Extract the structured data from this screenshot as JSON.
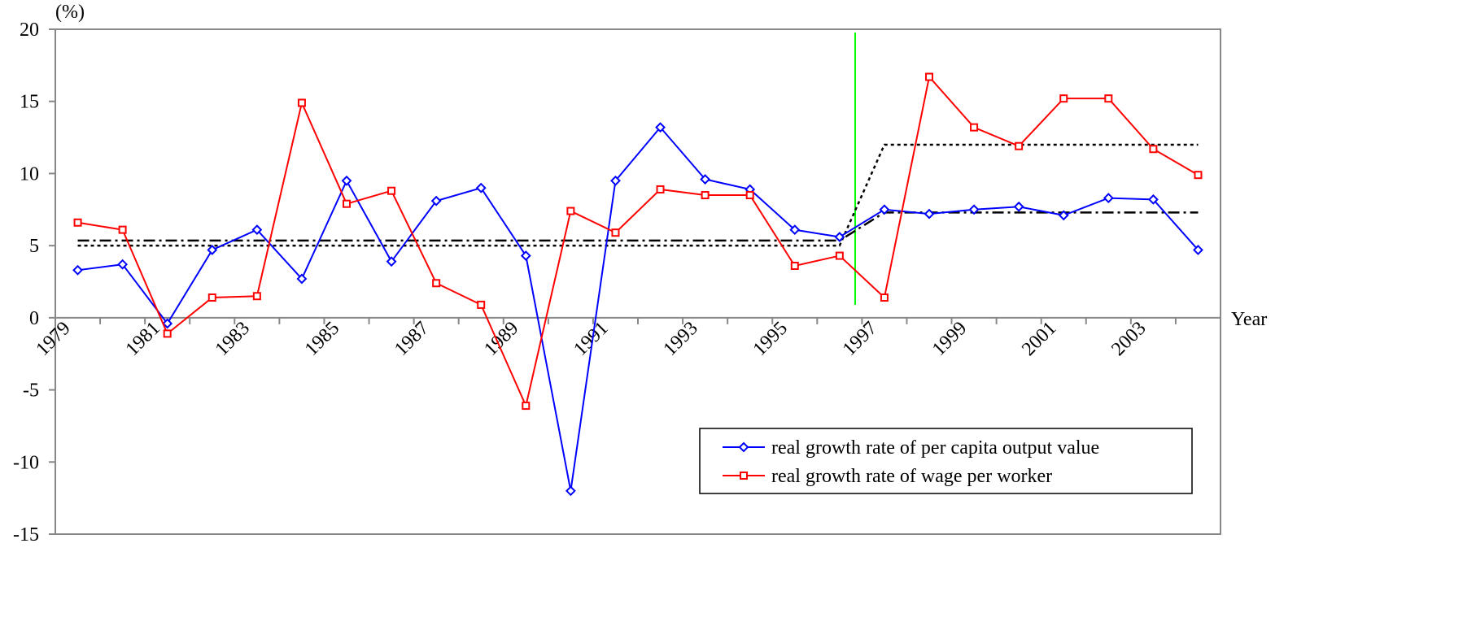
{
  "chart_data": {
    "type": "line",
    "y_label": "(%)",
    "x_label": "Year",
    "categories": [
      "1979",
      null,
      "1981",
      null,
      "1983",
      null,
      "1985",
      null,
      "1987",
      null,
      "1989",
      null,
      "1991",
      null,
      "1993",
      null,
      "1995",
      null,
      "1997",
      null,
      "1999",
      null,
      "2001",
      null,
      "2003",
      null
    ],
    "series": [
      {
        "name": "real growth rate of per capita output value",
        "color": "#0000ff",
        "marker": "diamond",
        "values": [
          3.3,
          3.7,
          -0.4,
          4.7,
          6.1,
          2.7,
          9.5,
          3.9,
          8.1,
          9.0,
          4.3,
          -12.0,
          9.5,
          13.2,
          9.6,
          8.9,
          6.1,
          5.6,
          7.5,
          7.2,
          7.5,
          7.7,
          7.1,
          8.3,
          8.2,
          4.7
        ]
      },
      {
        "name": "real growth rate of wage per worker",
        "color": "#ff0000",
        "marker": "square",
        "values": [
          6.6,
          6.1,
          -1.1,
          1.4,
          1.5,
          14.9,
          7.9,
          8.8,
          2.4,
          0.9,
          -6.1,
          7.4,
          5.9,
          8.9,
          8.5,
          8.5,
          3.6,
          4.3,
          1.4,
          16.7,
          13.2,
          11.9,
          15.2,
          15.2,
          11.7,
          9.9
        ]
      }
    ],
    "average_lines": [
      {
        "color": "#000000",
        "dash": "dashdot",
        "values": [
          5.35,
          5.35,
          5.35,
          5.35,
          5.35,
          5.35,
          5.35,
          5.35,
          5.35,
          5.35,
          5.35,
          5.35,
          5.35,
          5.35,
          5.35,
          5.35,
          5.35,
          5.35,
          7.3,
          7.3,
          7.3,
          7.3,
          7.3,
          7.3,
          7.3,
          7.3
        ]
      },
      {
        "color": "#000000",
        "dash": "dotted",
        "values": [
          5.0,
          5.0,
          5.0,
          5.0,
          5.0,
          5.0,
          5.0,
          5.0,
          5.0,
          5.0,
          5.0,
          5.0,
          5.0,
          5.0,
          5.0,
          5.0,
          5.0,
          5.0,
          12.0,
          12.0,
          12.0,
          12.0,
          12.0,
          12.0,
          12.0,
          12.0
        ]
      }
    ],
    "ylim": [
      -15,
      20
    ],
    "yticks": [
      -15,
      -10,
      -5,
      0,
      5,
      10,
      15,
      20
    ],
    "grid": false,
    "legend": "lower right"
  }
}
